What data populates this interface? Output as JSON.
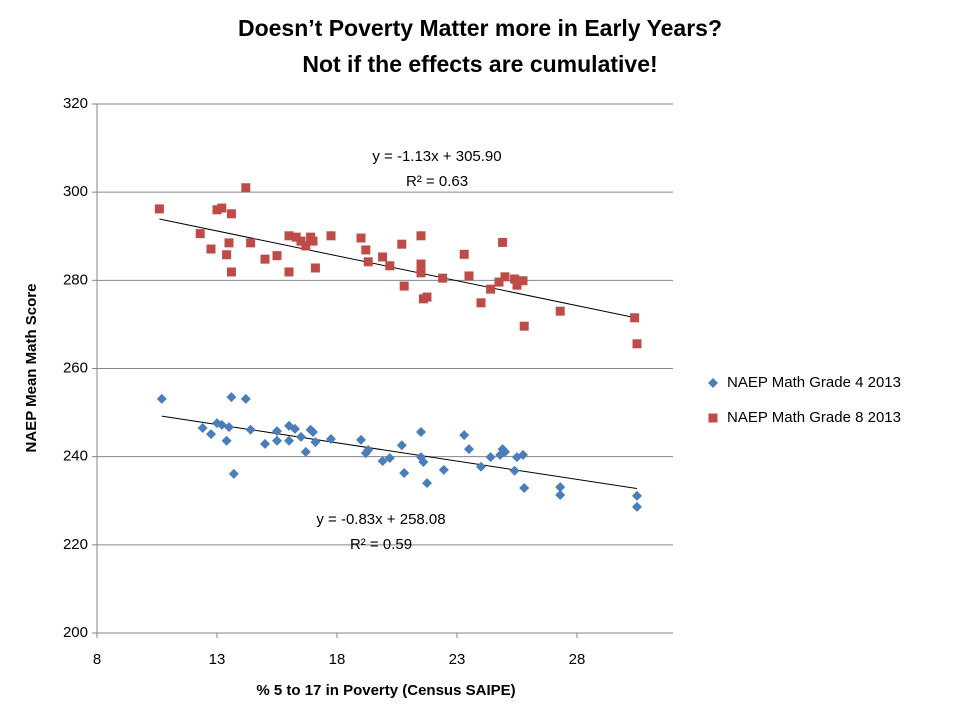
{
  "chart_data": {
    "type": "scatter",
    "title": "Doesn’t Poverty Matter more in Early Years?",
    "subtitle": "Not if the effects are cumulative!",
    "x_label": "% 5 to 17 in Poverty (Census SAIPE)",
    "y_label": "NAEP Mean Math Score",
    "xlim": [
      8,
      32
    ],
    "xticks": [
      8,
      13,
      18,
      23,
      28
    ],
    "ylim": [
      200,
      320
    ],
    "yticks": [
      200,
      220,
      240,
      260,
      280,
      300,
      320
    ],
    "grid": true,
    "legend": "right",
    "series": [
      {
        "name": "NAEP Math Grade 4 2013",
        "color": "#4a7ebb",
        "marker": "diamond",
        "x": [
          10.7,
          12.4,
          12.75,
          13.0,
          13.2,
          13.4,
          13.5,
          13.6,
          13.7,
          14.2,
          14.4,
          15.0,
          15.5,
          15.5,
          16.0,
          16.0,
          16.25,
          16.5,
          16.7,
          16.9,
          17.0,
          17.1,
          17.75,
          19.0,
          19.2,
          19.3,
          19.9,
          20.2,
          20.7,
          20.8,
          21.5,
          21.5,
          21.6,
          21.75,
          22.45,
          23.3,
          23.5,
          24.0,
          24.4,
          24.8,
          24.9,
          25.0,
          25.4,
          25.5,
          25.75,
          25.8,
          27.3,
          27.3,
          30.5,
          30.5
        ],
        "values": [
          253.1,
          246.5,
          245.1,
          247.6,
          247.2,
          243.6,
          246.7,
          253.5,
          236.1,
          253.1,
          246.1,
          242.9,
          245.8,
          243.6,
          247,
          243.6,
          246.3,
          244.5,
          241.1,
          246.1,
          245.6,
          243.3,
          244,
          243.8,
          240.8,
          241.5,
          239,
          239.7,
          242.6,
          236.3,
          245.6,
          239.9,
          238.8,
          234,
          237,
          244.9,
          241.7,
          237.7,
          239.9,
          240.4,
          241.7,
          241.1,
          236.8,
          239.9,
          240.4,
          232.9,
          233.1,
          231.3,
          231.1,
          228.6
        ],
        "trendline": {
          "slope": -0.83,
          "intercept": 258.08,
          "equation": "y = -0.83x + 258.08",
          "r2": "R² = 0.59"
        }
      },
      {
        "name": "NAEP Math Grade 8 2013",
        "color": "#be4b48",
        "marker": "square",
        "x": [
          10.6,
          12.3,
          12.75,
          13.0,
          13.2,
          13.4,
          13.5,
          13.6,
          13.6,
          14.2,
          14.4,
          15.0,
          15.5,
          16.0,
          16.0,
          16.3,
          16.5,
          16.7,
          16.9,
          17.0,
          17.1,
          17.75,
          19.0,
          19.2,
          19.3,
          19.9,
          20.2,
          20.7,
          20.8,
          21.5,
          21.5,
          21.5,
          21.6,
          21.75,
          22.4,
          23.3,
          23.5,
          24.0,
          24.4,
          24.75,
          24.9,
          25.0,
          25.4,
          25.5,
          25.75,
          25.8,
          27.3,
          30.4,
          30.5
        ],
        "values": [
          296.2,
          290.6,
          287.1,
          296,
          296.4,
          285.8,
          288.5,
          295.1,
          281.9,
          301,
          288.5,
          284.8,
          285.6,
          290.1,
          281.9,
          289.8,
          288.9,
          287.8,
          289.8,
          288.9,
          282.8,
          290.1,
          289.6,
          286.9,
          284.2,
          285.3,
          283.3,
          288.2,
          278.7,
          290.1,
          283.7,
          281.7,
          275.8,
          276.2,
          280.5,
          285.9,
          281,
          274.9,
          278,
          279.6,
          288.6,
          280.8,
          280.3,
          278.9,
          279.9,
          269.6,
          273,
          271.5,
          265.6
        ],
        "trendline": {
          "slope": -1.13,
          "intercept": 305.9,
          "equation": "y = -1.13x + 305.90",
          "r2": "R² = 0.63"
        }
      }
    ]
  }
}
